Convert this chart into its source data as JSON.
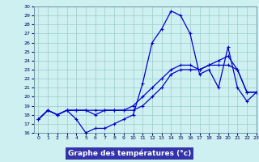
{
  "title": "Graphe des températures (°c)",
  "bg_color": "#cff0f0",
  "plot_bg": "#cff0f0",
  "grid_color": "#99cccc",
  "line_color": "#0000cc",
  "xlabel_bg": "#3333aa",
  "xlabel_color": "#ffffff",
  "ylim": [
    16,
    30
  ],
  "xlim": [
    -0.5,
    23
  ],
  "yticks": [
    16,
    17,
    18,
    19,
    20,
    21,
    22,
    23,
    24,
    25,
    26,
    27,
    28,
    29,
    30
  ],
  "xticks": [
    0,
    1,
    2,
    3,
    4,
    5,
    6,
    7,
    8,
    9,
    10,
    11,
    12,
    13,
    14,
    15,
    16,
    17,
    18,
    19,
    20,
    21,
    22,
    23
  ],
  "line1_x": [
    0,
    1,
    2,
    3,
    4,
    5,
    6,
    7,
    8,
    9,
    10,
    11,
    12,
    13,
    14,
    15,
    16,
    17,
    18,
    19,
    20,
    21,
    22,
    23
  ],
  "line1_y": [
    17.5,
    18.5,
    18.0,
    18.5,
    17.5,
    16.0,
    16.5,
    16.5,
    17.0,
    17.5,
    18.0,
    21.5,
    26.0,
    27.5,
    29.5,
    29.0,
    27.0,
    22.5,
    23.0,
    21.0,
    25.5,
    21.0,
    19.5,
    20.5
  ],
  "line2_x": [
    0,
    1,
    2,
    3,
    4,
    5,
    6,
    7,
    8,
    9,
    10,
    11,
    12,
    13,
    14,
    15,
    16,
    17,
    18,
    19,
    20,
    21,
    22,
    23
  ],
  "line2_y": [
    17.5,
    18.5,
    18.0,
    18.5,
    18.5,
    18.5,
    18.0,
    18.5,
    18.5,
    18.5,
    19.0,
    20.0,
    21.0,
    22.0,
    23.0,
    23.5,
    23.5,
    23.0,
    23.5,
    24.0,
    24.5,
    23.0,
    20.5,
    20.5
  ],
  "line3_x": [
    0,
    1,
    2,
    3,
    4,
    5,
    6,
    7,
    8,
    9,
    10,
    11,
    12,
    13,
    14,
    15,
    16,
    17,
    18,
    19,
    20,
    21,
    22,
    23
  ],
  "line3_y": [
    17.5,
    18.5,
    18.0,
    18.5,
    18.5,
    18.5,
    18.5,
    18.5,
    18.5,
    18.5,
    18.5,
    19.0,
    20.0,
    21.0,
    22.5,
    23.0,
    23.0,
    23.0,
    23.5,
    23.5,
    23.5,
    23.0,
    20.5,
    20.5
  ]
}
